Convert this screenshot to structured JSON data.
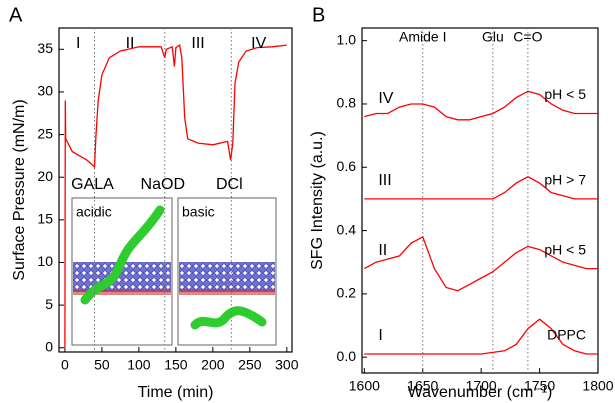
{
  "chart_data": [
    {
      "type": "line",
      "panel": "A",
      "xlabel": "Time (min)",
      "ylabel": "Surface Pressure (mN/m)",
      "xlim": [
        -8,
        307
      ],
      "ylim": [
        -0.5,
        37.5
      ],
      "xticks": [
        0,
        50,
        100,
        150,
        200,
        250,
        300
      ],
      "yticks": [
        0,
        5,
        10,
        15,
        20,
        25,
        30,
        35
      ],
      "phases": [
        "I",
        "II",
        "III",
        "IV"
      ],
      "markers": [
        {
          "x": 40,
          "label": "GALA"
        },
        {
          "x": 135,
          "label": "NaOD"
        },
        {
          "x": 225,
          "label": "DCl"
        }
      ],
      "inset_labels": [
        "acidic",
        "basic"
      ],
      "x": [
        0,
        0.5,
        1,
        10,
        20,
        30,
        40,
        42,
        45,
        50,
        60,
        75,
        100,
        130,
        135,
        137,
        145,
        148,
        150,
        155,
        158,
        162,
        166,
        180,
        200,
        220,
        224,
        227,
        230,
        235,
        245,
        260,
        280,
        300
      ],
      "series": [
        {
          "color": "#ff0000",
          "values": [
            0,
            29,
            24.5,
            23,
            22.5,
            22,
            21.2,
            25,
            29,
            32,
            34,
            34.8,
            35.3,
            35.3,
            34,
            35,
            35.3,
            33,
            35.2,
            35.5,
            34,
            27,
            24.5,
            24,
            23.8,
            24.2,
            22,
            24,
            31,
            33.5,
            34.8,
            35.2,
            35.3,
            35.5
          ]
        }
      ]
    },
    {
      "type": "line",
      "panel": "B",
      "xlabel": "Wavenumber (cm⁻¹)",
      "ylabel": "SFG Intensity (a.u.)",
      "xlim": [
        1598,
        1800
      ],
      "ylim": [
        -0.05,
        1.04
      ],
      "xticks": [
        1600,
        1650,
        1700,
        1750,
        1800
      ],
      "yticks": [
        {
          "value": 0,
          "label": "0.0"
        },
        0.2,
        0.4,
        0.6,
        0.8,
        {
          "value": 1,
          "label": "1.0"
        }
      ],
      "markers": [
        {
          "x": 1650,
          "label": "Amide I"
        },
        {
          "x": 1710,
          "label": "Glu"
        },
        {
          "x": 1740,
          "label": "C=O"
        }
      ],
      "x": [
        1600,
        1610,
        1620,
        1630,
        1640,
        1650,
        1660,
        1670,
        1680,
        1690,
        1700,
        1710,
        1720,
        1730,
        1740,
        1750,
        1760,
        1770,
        1780,
        1790,
        1800
      ],
      "series": [
        {
          "name": "I",
          "label": "DPPC",
          "color": "#ff0000",
          "values": [
            0.01,
            0.01,
            0.01,
            0.01,
            0.01,
            0.01,
            0.01,
            0.01,
            0.01,
            0.01,
            0.01,
            0.015,
            0.02,
            0.04,
            0.09,
            0.12,
            0.09,
            0.04,
            0.02,
            0.01,
            0.01
          ]
        },
        {
          "name": "II",
          "label": "pH < 5",
          "color": "#ff0000",
          "values": [
            0.28,
            0.3,
            0.31,
            0.32,
            0.36,
            0.38,
            0.28,
            0.22,
            0.21,
            0.23,
            0.25,
            0.27,
            0.3,
            0.33,
            0.35,
            0.34,
            0.32,
            0.3,
            0.29,
            0.28,
            0.28
          ]
        },
        {
          "name": "III",
          "label": "pH > 7",
          "color": "#ff0000",
          "values": [
            0.5,
            0.5,
            0.5,
            0.5,
            0.5,
            0.5,
            0.5,
            0.5,
            0.5,
            0.5,
            0.5,
            0.5,
            0.52,
            0.55,
            0.57,
            0.55,
            0.52,
            0.51,
            0.5,
            0.5,
            0.5
          ]
        },
        {
          "name": "IV",
          "label": "pH < 5",
          "color": "#ff0000",
          "values": [
            0.76,
            0.77,
            0.77,
            0.79,
            0.8,
            0.8,
            0.79,
            0.76,
            0.75,
            0.75,
            0.76,
            0.77,
            0.79,
            0.82,
            0.84,
            0.83,
            0.8,
            0.78,
            0.77,
            0.77,
            0.77
          ]
        }
      ]
    }
  ]
}
